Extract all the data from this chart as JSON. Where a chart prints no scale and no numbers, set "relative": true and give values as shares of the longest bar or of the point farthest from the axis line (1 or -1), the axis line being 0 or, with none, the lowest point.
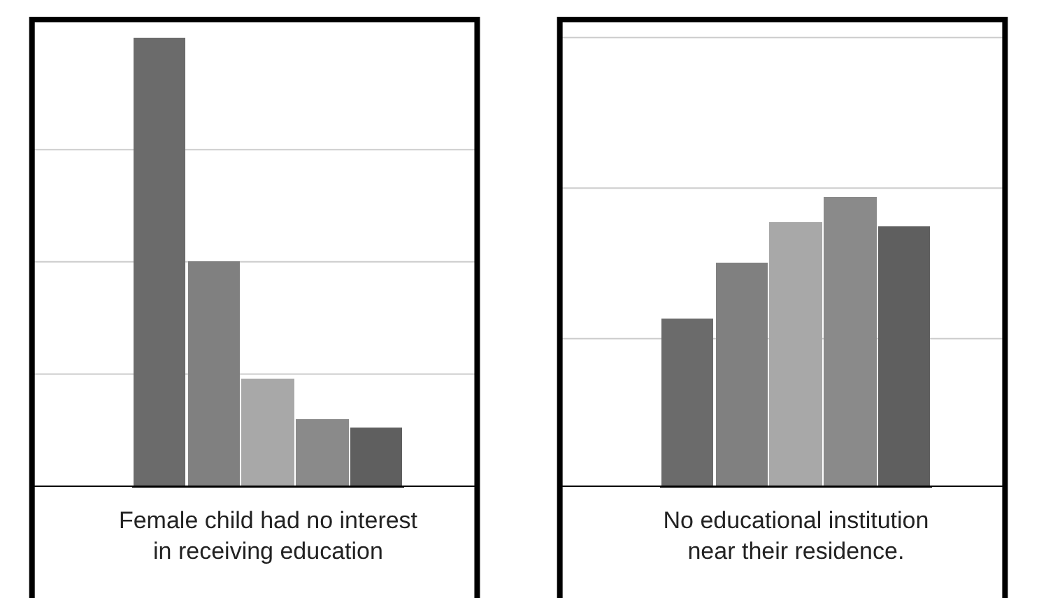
{
  "chart_data": [
    {
      "type": "bar",
      "relative": true,
      "xlabel": "Female child had no interest in receiving education",
      "categories": [
        null,
        null,
        null,
        null,
        null
      ],
      "values": [
        1,
        0.5,
        0.24,
        0.15,
        0.13
      ],
      "colors": [
        "#6b6b6b",
        "#808080",
        "#a8a8a8",
        "#8a8a8a",
        "#5f5f5f"
      ],
      "ref_lines": [
        {
          "axis": "y",
          "value": 0.25,
          "color": "#cccccc"
        },
        {
          "axis": "y",
          "value": 0.5,
          "color": "#cccccc"
        },
        {
          "axis": "y",
          "value": 0.75,
          "color": "#cccccc"
        }
      ]
    },
    {
      "type": "bar",
      "relative": true,
      "xlabel": "No educational institution near their residence.",
      "categories": [
        null,
        null,
        null,
        null,
        null
      ],
      "values": [
        0.58,
        0.77,
        0.91,
        1,
        0.9
      ],
      "colors": [
        "#6b6b6b",
        "#808080",
        "#a8a8a8",
        "#8a8a8a",
        "#5f5f5f"
      ],
      "ref_lines": [
        {
          "axis": "y",
          "value": 0.51,
          "color": "#cccccc"
        },
        {
          "axis": "y",
          "value": 1.03,
          "color": "#cccccc"
        },
        {
          "axis": "y",
          "value": 1.55,
          "color": "#cccccc"
        }
      ]
    }
  ]
}
